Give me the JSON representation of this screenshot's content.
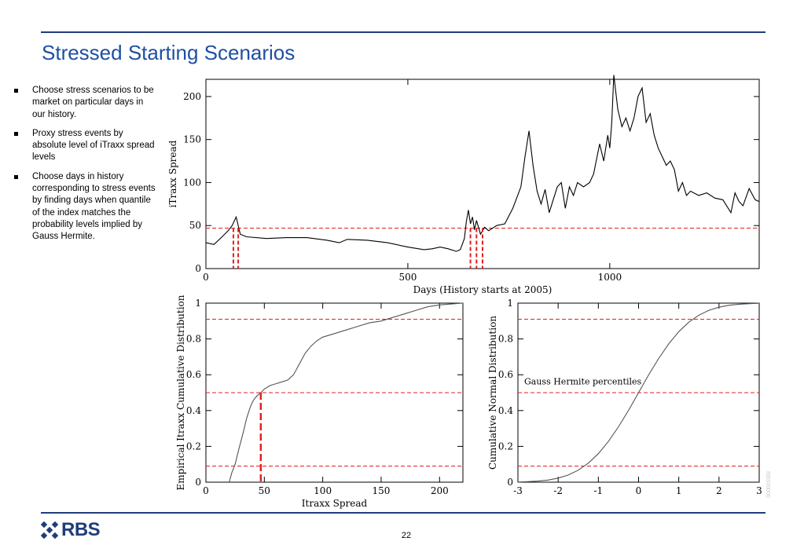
{
  "page": {
    "title": "Stressed Starting Scenarios",
    "page_number": "22",
    "brand": "RBS",
    "side_code": "RBS00000",
    "rule_color": "#1f3d7a",
    "title_color": "#1f4fa3",
    "bullets": [
      "Choose stress scenarios to be market on particular days in our history.",
      "Proxy stress events by absolute level of iTraxx spread levels",
      "Choose days in history corresponding to stress events by finding days when quantile of the index matches the probability levels implied by Gauss Hermite."
    ]
  },
  "chart_data": [
    {
      "type": "line",
      "xlabel": "Days (History starts at 2005)",
      "ylabel": "iTraxx Spread",
      "xlim": [
        0,
        1370
      ],
      "ylim": [
        0,
        220
      ],
      "xticks": [
        "0",
        "500",
        "1000"
      ],
      "yticks": [
        "0",
        "50",
        "100",
        "150",
        "200"
      ],
      "series_color": "#000000",
      "threshold_line": {
        "y": 47,
        "style": "dashed",
        "color": "#e02020"
      },
      "marked_days": [
        68,
        80,
        655,
        670,
        685
      ],
      "x": [
        0,
        20,
        40,
        55,
        65,
        75,
        85,
        100,
        150,
        200,
        250,
        300,
        330,
        350,
        400,
        450,
        500,
        540,
        560,
        580,
        600,
        620,
        630,
        640,
        645,
        650,
        655,
        660,
        665,
        670,
        680,
        690,
        700,
        720,
        740,
        760,
        780,
        790,
        800,
        810,
        820,
        830,
        840,
        850,
        860,
        870,
        880,
        890,
        900,
        910,
        920,
        935,
        950,
        960,
        975,
        985,
        995,
        1000,
        1005,
        1010,
        1020,
        1030,
        1040,
        1050,
        1060,
        1070,
        1080,
        1090,
        1100,
        1110,
        1120,
        1130,
        1140,
        1150,
        1160,
        1170,
        1180,
        1190,
        1200,
        1220,
        1240,
        1260,
        1280,
        1300,
        1310,
        1320,
        1330,
        1345,
        1360,
        1370
      ],
      "y": [
        30,
        28,
        37,
        44,
        50,
        60,
        40,
        37,
        35,
        36,
        36,
        33,
        30,
        34,
        33,
        30,
        25,
        22,
        23,
        25,
        23,
        20,
        22,
        35,
        55,
        68,
        52,
        60,
        45,
        56,
        40,
        48,
        44,
        50,
        52,
        70,
        95,
        130,
        160,
        120,
        90,
        75,
        92,
        65,
        80,
        95,
        100,
        70,
        95,
        85,
        100,
        95,
        100,
        110,
        145,
        125,
        155,
        140,
        170,
        225,
        185,
        165,
        175,
        160,
        175,
        200,
        210,
        170,
        180,
        155,
        140,
        130,
        120,
        125,
        115,
        90,
        100,
        85,
        90,
        85,
        88,
        82,
        80,
        65,
        88,
        78,
        73,
        93,
        80,
        78
      ]
    },
    {
      "type": "line",
      "xlabel": "Itraxx Spread",
      "ylabel": "Empirical Itraxx Cumulative Distribution",
      "xlim": [
        0,
        220
      ],
      "ylim": [
        0,
        1
      ],
      "xticks": [
        "0",
        "50",
        "100",
        "150",
        "200"
      ],
      "yticks": [
        "0",
        "0.2",
        "0.4",
        "0.6",
        "0.8",
        "1"
      ],
      "series_color": "#555555",
      "h_lines": [
        0.91,
        0.5,
        0.09
      ],
      "marker": {
        "x": 47,
        "y": 0.5
      },
      "x": [
        20,
        22,
        25,
        28,
        32,
        35,
        38,
        40,
        42,
        45,
        47,
        50,
        55,
        60,
        65,
        70,
        75,
        80,
        85,
        90,
        95,
        100,
        110,
        120,
        130,
        140,
        150,
        160,
        170,
        180,
        190,
        200,
        210,
        220
      ],
      "y": [
        0,
        0.05,
        0.1,
        0.18,
        0.28,
        0.36,
        0.42,
        0.45,
        0.47,
        0.49,
        0.5,
        0.52,
        0.54,
        0.55,
        0.56,
        0.57,
        0.6,
        0.66,
        0.72,
        0.76,
        0.79,
        0.81,
        0.83,
        0.85,
        0.87,
        0.89,
        0.9,
        0.92,
        0.94,
        0.96,
        0.98,
        0.99,
        0.995,
        1.0
      ]
    },
    {
      "type": "line",
      "xlabel": "",
      "ylabel": "Cumulative Normal Distribution",
      "annotation": "Gauss Hermite percentiles",
      "xlim": [
        -3,
        3
      ],
      "ylim": [
        0,
        1
      ],
      "xticks": [
        "-3",
        "-2",
        "-1",
        "0",
        "1",
        "2",
        "3"
      ],
      "yticks": [
        "0",
        "0.2",
        "0.4",
        "0.6",
        "0.8",
        "1"
      ],
      "series_color": "#555555",
      "h_lines": [
        0.91,
        0.5,
        0.09
      ],
      "x": [
        -3,
        -2.75,
        -2.5,
        -2.25,
        -2,
        -1.75,
        -1.5,
        -1.25,
        -1,
        -0.75,
        -0.5,
        -0.25,
        0,
        0.25,
        0.5,
        0.75,
        1,
        1.25,
        1.5,
        1.75,
        2,
        2.25,
        2.5,
        2.75,
        3
      ],
      "y": [
        0.001,
        0.003,
        0.006,
        0.012,
        0.023,
        0.04,
        0.067,
        0.106,
        0.159,
        0.227,
        0.309,
        0.401,
        0.5,
        0.599,
        0.691,
        0.773,
        0.841,
        0.894,
        0.933,
        0.96,
        0.977,
        0.988,
        0.994,
        0.997,
        0.999
      ]
    }
  ]
}
